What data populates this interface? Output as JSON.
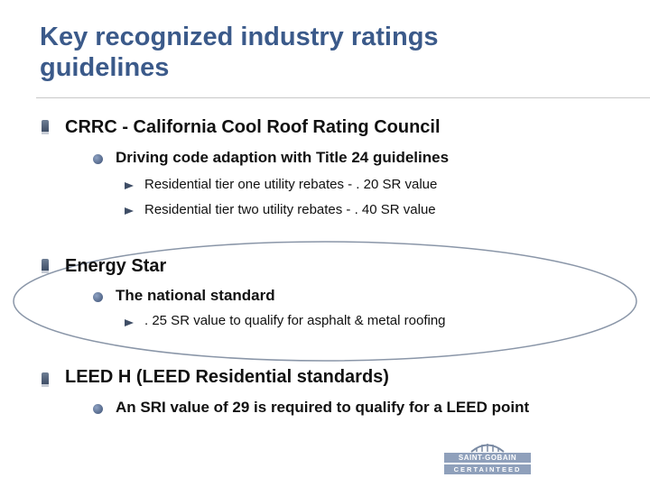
{
  "title": {
    "line1": "Key recognized industry ratings",
    "line2": "guidelines"
  },
  "sections": [
    {
      "heading": "CRRC - California Cool Roof Rating Council",
      "sub": "Driving code adaption with Title 24 guidelines",
      "items": [
        "Residential tier one utility rebates - . 20 SR value",
        "Residential tier two utility rebates - . 40 SR value"
      ]
    },
    {
      "heading": "Energy Star",
      "sub": "The national standard",
      "items": [
        ". 25 SR value to qualify for asphalt & metal roofing"
      ]
    },
    {
      "heading": "LEED H (LEED Residential standards)",
      "sub": "An SRI value of 29 is required to qualify for a LEED point"
    }
  ],
  "logo": {
    "line1": "SAINT-GOBAIN",
    "line2": "CERTAINTEED"
  }
}
